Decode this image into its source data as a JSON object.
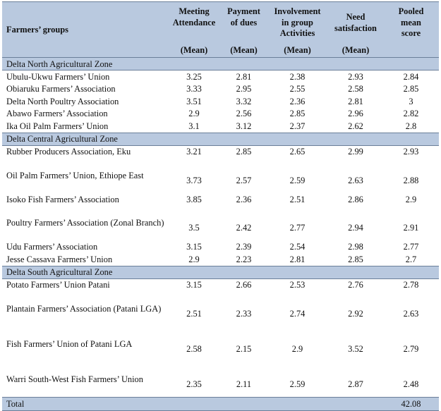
{
  "header": {
    "group_label": "Farmers’ groups",
    "columns": [
      {
        "lines": [
          "Meeting",
          "Attendance"
        ],
        "mean": "(Mean)"
      },
      {
        "lines": [
          "Payment",
          "of dues"
        ],
        "mean": "(Mean)"
      },
      {
        "lines": [
          "Involvement",
          "in group",
          "Activities"
        ],
        "mean": "(Mean)"
      },
      {
        "lines": [
          "Need",
          "satisfaction"
        ],
        "mean": "(Mean)"
      },
      {
        "lines": [
          "Pooled",
          "mean",
          "score"
        ],
        "mean": ""
      }
    ]
  },
  "zones": [
    {
      "name": "Delta North Agricultural Zone",
      "rows": [
        {
          "name": "Ubulu-Ukwu Farmers’ Union",
          "values": [
            "3.25",
            "2.81",
            "2.38",
            "2.93",
            "2.84"
          ]
        },
        {
          "name": "Obiaruku Farmers’ Association",
          "values": [
            "3.33",
            "2.95",
            "2.55",
            "2.58",
            "2.85"
          ]
        },
        {
          "name": "Delta North Poultry Association",
          "values": [
            "3.51",
            "3.32",
            "2.36",
            "2.81",
            "3"
          ]
        },
        {
          "name": "Abawo Farmers’ Association",
          "values": [
            "2.9",
            "2.56",
            "2.85",
            "2.96",
            "2.82"
          ]
        },
        {
          "name": "Ika Oil Palm Farmers’ Union",
          "values": [
            "3.1",
            "3.12",
            "2.37",
            "2.62",
            "2.8"
          ]
        }
      ]
    },
    {
      "name": "Delta Central Agricultural Zone",
      "rows": [
        {
          "name": "Rubber Producers Association, Eku",
          "values": [
            "3.21",
            "2.85",
            "2.65",
            "2.99",
            "2.93"
          ]
        },
        {
          "name": "Oil Palm Farmers’ Union, Ethiope East",
          "values": [
            "3.73",
            "2.57",
            "2.59",
            "2.63",
            "2.88"
          ]
        },
        {
          "name": "Isoko Fish Farmers’ Association",
          "values": [
            "3.85",
            "2.36",
            "2.51",
            "2.86",
            "2.9"
          ]
        },
        {
          "name": "Poultry Farmers’ Association (Zonal Branch)",
          "values": [
            "3.5",
            "2.42",
            "2.77",
            "2.94",
            "2.91"
          ]
        },
        {
          "name": "Udu Farmers’ Association",
          "values": [
            "3.15",
            "2.39",
            "2.54",
            "2.98",
            "2.77"
          ]
        },
        {
          "name": "Jesse Cassava Farmers’ Union",
          "values": [
            "2.9",
            "2.23",
            "2.81",
            "2.85",
            "2.7"
          ]
        }
      ]
    },
    {
      "name": "Delta South Agricultural Zone",
      "rows": [
        {
          "name": "Potato Farmers’ Union Patani",
          "values": [
            "3.15",
            "2.66",
            "2.53",
            "2.76",
            "2.78"
          ]
        },
        {
          "name": "Plantain Farmers’ Association (Patani LGA)",
          "values": [
            "2.51",
            "2.33",
            "2.74",
            "2.92",
            "2.63"
          ]
        },
        {
          "name": "Fish Farmers’ Union of Patani LGA",
          "values": [
            "2.58",
            "2.15",
            "2.9",
            "3.52",
            "2.79"
          ]
        },
        {
          "name": "Warri South-West Fish Farmers’ Union",
          "values": [
            "2.35",
            "2.11",
            "2.59",
            "2.87",
            "2.48"
          ]
        }
      ]
    }
  ],
  "total": {
    "label": "Total",
    "values": [
      "",
      "",
      "",
      "",
      "42.08"
    ]
  }
}
